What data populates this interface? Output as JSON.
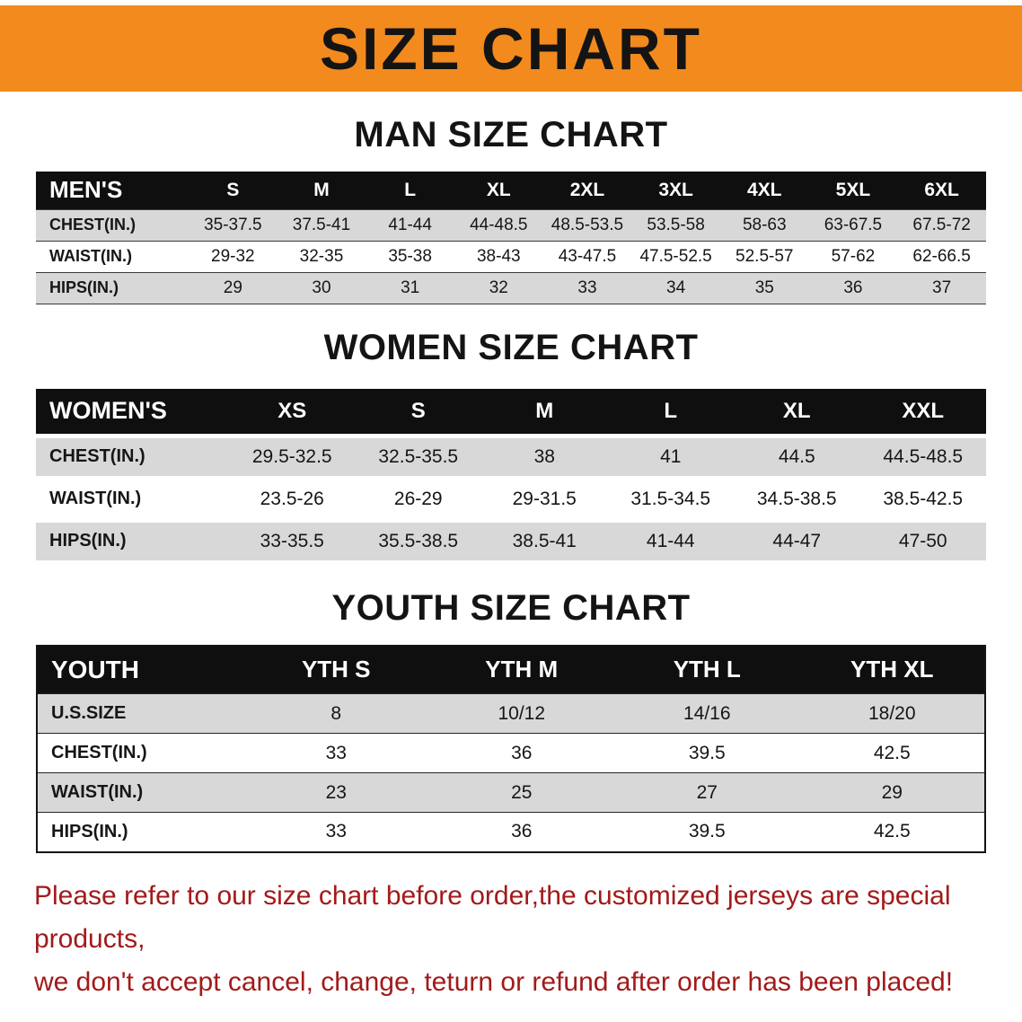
{
  "banner": {
    "title": "SIZE CHART"
  },
  "colors": {
    "banner_bg": "#F28A1E",
    "header_bg": "#0F0F0F",
    "stripe": "#D8D8D8",
    "notice_text": "#A21A1A"
  },
  "chart_data": [
    {
      "type": "table",
      "title": "MAN SIZE CHART",
      "columns": [
        "MEN'S",
        "S",
        "M",
        "L",
        "XL",
        "2XL",
        "3XL",
        "4XL",
        "5XL",
        "6XL"
      ],
      "rows": [
        [
          "CHEST(IN.)",
          "35-37.5",
          "37.5-41",
          "41-44",
          "44-48.5",
          "48.5-53.5",
          "53.5-58",
          "58-63",
          "63-67.5",
          "67.5-72"
        ],
        [
          "WAIST(IN.)",
          "29-32",
          "32-35",
          "35-38",
          "38-43",
          "43-47.5",
          "47.5-52.5",
          "52.5-57",
          "57-62",
          "62-66.5"
        ],
        [
          "HIPS(IN.)",
          "29",
          "30",
          "31",
          "32",
          "33",
          "34",
          "35",
          "36",
          "37"
        ]
      ]
    },
    {
      "type": "table",
      "title": "WOMEN SIZE CHART",
      "columns": [
        "WOMEN'S",
        "XS",
        "S",
        "M",
        "L",
        "XL",
        "XXL"
      ],
      "rows": [
        [
          "CHEST(IN.)",
          "29.5-32.5",
          "32.5-35.5",
          "38",
          "41",
          "44.5",
          "44.5-48.5"
        ],
        [
          "WAIST(IN.)",
          "23.5-26",
          "26-29",
          "29-31.5",
          "31.5-34.5",
          "34.5-38.5",
          "38.5-42.5"
        ],
        [
          "HIPS(IN.)",
          "33-35.5",
          "35.5-38.5",
          "38.5-41",
          "41-44",
          "44-47",
          "47-50"
        ]
      ]
    },
    {
      "type": "table",
      "title": "YOUTH SIZE CHART",
      "columns": [
        "YOUTH",
        "YTH S",
        "YTH M",
        "YTH L",
        "YTH XL"
      ],
      "rows": [
        [
          "U.S.SIZE",
          "8",
          "10/12",
          "14/16",
          "18/20"
        ],
        [
          "CHEST(IN.)",
          "33",
          "36",
          "39.5",
          "42.5"
        ],
        [
          "WAIST(IN.)",
          "23",
          "25",
          "27",
          "29"
        ],
        [
          "HIPS(IN.)",
          "33",
          "36",
          "39.5",
          "42.5"
        ]
      ]
    }
  ],
  "footer": {
    "line1": "Please refer to our size chart before order,the customized jerseys are special products,",
    "line2": "we don't accept cancel, change, teturn or refund after order has been placed!"
  }
}
